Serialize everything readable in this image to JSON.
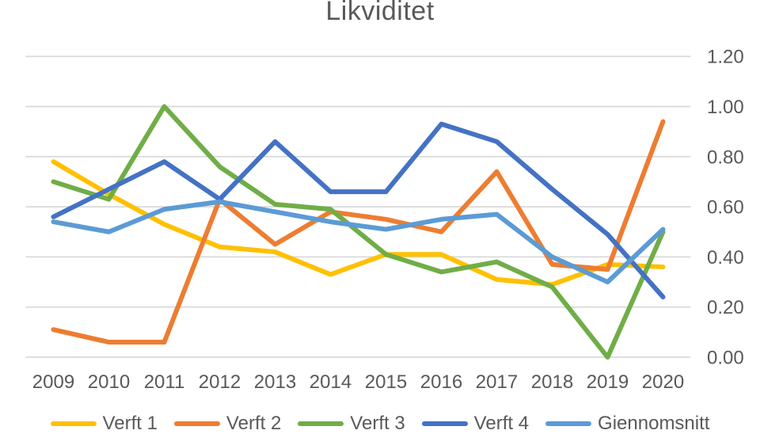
{
  "title": "Likviditet",
  "chart_data": {
    "type": "line",
    "title": "Likviditet",
    "x": [
      "2009",
      "2010",
      "2011",
      "2012",
      "2013",
      "2014",
      "2015",
      "2016",
      "2017",
      "2018",
      "2019",
      "2020"
    ],
    "series": [
      {
        "name": "Verft 1",
        "color": "#FFC000",
        "values": [
          0.78,
          0.65,
          0.53,
          0.44,
          0.42,
          0.33,
          0.41,
          0.41,
          0.31,
          0.29,
          0.37,
          0.36
        ]
      },
      {
        "name": "Verft 2",
        "color": "#ED7D31",
        "values": [
          0.11,
          0.06,
          0.06,
          0.63,
          0.45,
          0.58,
          0.55,
          0.5,
          0.74,
          0.37,
          0.35,
          0.94
        ]
      },
      {
        "name": "Verft 3",
        "color": "#70AD47",
        "values": [
          0.7,
          0.63,
          1.0,
          0.76,
          0.61,
          0.59,
          0.41,
          0.34,
          0.38,
          0.28,
          0.0,
          0.5
        ]
      },
      {
        "name": "Verft 4",
        "color": "#4472C4",
        "values": [
          0.56,
          0.67,
          0.78,
          0.63,
          0.86,
          0.66,
          0.66,
          0.93,
          0.86,
          0.67,
          0.49,
          0.24
        ]
      },
      {
        "name": "Giennomsnitt",
        "color": "#5B9BD5",
        "values": [
          0.54,
          0.5,
          0.59,
          0.62,
          0.58,
          0.54,
          0.51,
          0.55,
          0.57,
          0.4,
          0.3,
          0.51
        ]
      }
    ],
    "xlabel": "",
    "ylabel": "",
    "ylim": [
      0.0,
      1.2
    ],
    "yticks": [
      0.0,
      0.2,
      0.4,
      0.6,
      0.8,
      1.0,
      1.2
    ],
    "ytick_decimals": 2,
    "y_axis_side": "right",
    "grid": "horizontal",
    "legend_position": "bottom",
    "text_color": "#595959",
    "gridline_color": "#D9D9D9",
    "background_color": "#FFFFFF"
  }
}
